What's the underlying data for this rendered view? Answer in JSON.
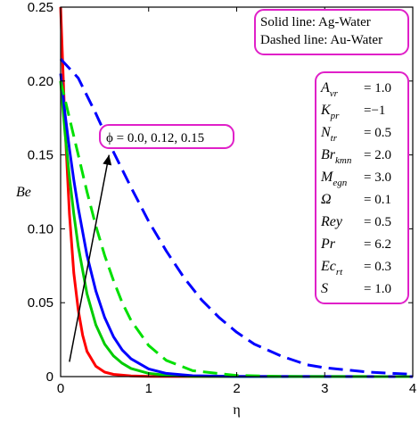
{
  "chart_data": {
    "type": "line",
    "xlabel": "η",
    "ylabel": "Be",
    "xlim": [
      0,
      4
    ],
    "ylim": [
      0,
      0.25
    ],
    "x_ticks": [
      "0",
      "1",
      "2",
      "3",
      "4"
    ],
    "y_ticks": [
      "0",
      "0.05",
      "0.10",
      "0.15",
      "0.20",
      "0.25"
    ],
    "x_tick_values": [
      0,
      1,
      2,
      3,
      4
    ],
    "y_tick_values": [
      0,
      0.05,
      0.1,
      0.15,
      0.2,
      0.25
    ],
    "grid": false,
    "series": [
      {
        "color": "#ff0000",
        "dash": "solid",
        "points": [
          [
            0,
            0.25
          ],
          [
            0.05,
            0.17
          ],
          [
            0.1,
            0.11
          ],
          [
            0.15,
            0.07
          ],
          [
            0.2,
            0.045
          ],
          [
            0.25,
            0.028
          ],
          [
            0.3,
            0.017
          ],
          [
            0.4,
            0.007
          ],
          [
            0.5,
            0.003
          ],
          [
            0.6,
            0.0015
          ],
          [
            0.8,
            0.0004
          ],
          [
            1.0,
            0.0001
          ],
          [
            2.0,
            0
          ],
          [
            4.0,
            0
          ]
        ]
      },
      {
        "color": "#00cc00",
        "dash": "solid",
        "points": [
          [
            0,
            0.2
          ],
          [
            0.05,
            0.165
          ],
          [
            0.1,
            0.135
          ],
          [
            0.15,
            0.11
          ],
          [
            0.2,
            0.088
          ],
          [
            0.3,
            0.056
          ],
          [
            0.4,
            0.035
          ],
          [
            0.5,
            0.022
          ],
          [
            0.6,
            0.014
          ],
          [
            0.7,
            0.009
          ],
          [
            0.8,
            0.0055
          ],
          [
            1.0,
            0.0022
          ],
          [
            1.2,
            0.0009
          ],
          [
            1.5,
            0.0002
          ],
          [
            2.0,
            0
          ],
          [
            4.0,
            0
          ]
        ]
      },
      {
        "color": "#0000ff",
        "dash": "solid",
        "points": [
          [
            0,
            0.205
          ],
          [
            0.05,
            0.178
          ],
          [
            0.1,
            0.154
          ],
          [
            0.15,
            0.133
          ],
          [
            0.2,
            0.114
          ],
          [
            0.3,
            0.082
          ],
          [
            0.4,
            0.058
          ],
          [
            0.5,
            0.04
          ],
          [
            0.6,
            0.027
          ],
          [
            0.7,
            0.018
          ],
          [
            0.8,
            0.012
          ],
          [
            1.0,
            0.0052
          ],
          [
            1.2,
            0.0022
          ],
          [
            1.5,
            0.0006
          ],
          [
            2.0,
            0.0001
          ],
          [
            4.0,
            0
          ]
        ]
      },
      {
        "color": "#00e000",
        "dash": "dashed",
        "points": [
          [
            0,
            0.2
          ],
          [
            0.1,
            0.175
          ],
          [
            0.2,
            0.15
          ],
          [
            0.3,
            0.125
          ],
          [
            0.4,
            0.102
          ],
          [
            0.5,
            0.082
          ],
          [
            0.6,
            0.065
          ],
          [
            0.7,
            0.05
          ],
          [
            0.8,
            0.038
          ],
          [
            1.0,
            0.021
          ],
          [
            1.2,
            0.011
          ],
          [
            1.5,
            0.004
          ],
          [
            2.0,
            0.0008
          ],
          [
            2.5,
            0.0001
          ],
          [
            4.0,
            0
          ]
        ]
      },
      {
        "color": "#0000ff",
        "dash": "dashed",
        "points": [
          [
            0,
            0.215
          ],
          [
            0.2,
            0.202
          ],
          [
            0.4,
            0.178
          ],
          [
            0.6,
            0.152
          ],
          [
            0.8,
            0.128
          ],
          [
            1.0,
            0.105
          ],
          [
            1.2,
            0.085
          ],
          [
            1.4,
            0.067
          ],
          [
            1.6,
            0.052
          ],
          [
            1.8,
            0.04
          ],
          [
            2.0,
            0.03
          ],
          [
            2.2,
            0.022
          ],
          [
            2.5,
            0.014
          ],
          [
            2.8,
            0.008
          ],
          [
            3.0,
            0.006
          ],
          [
            3.5,
            0.003
          ],
          [
            4.0,
            0.0015
          ]
        ]
      }
    ],
    "legend_box": [
      "Solid line:   Ag-Water",
      "Dashed line: Au-Water"
    ],
    "phi_label": "ϕ = 0.0, 0.12, 0.15",
    "arrow": {
      "from": [
        0.1,
        0.01
      ],
      "to": [
        0.55,
        0.15
      ]
    },
    "params": [
      {
        "sym": "A",
        "sub": "vr",
        "val": "= 1.0"
      },
      {
        "sym": "K",
        "sub": "pr",
        "val": "=−1"
      },
      {
        "sym": "N",
        "sub": "tr",
        "val": "= 0.5"
      },
      {
        "sym": "Br",
        "sub": "kmn",
        "val": "= 2.0"
      },
      {
        "sym": "M",
        "sub": "egn",
        "val": "= 3.0"
      },
      {
        "sym": "Ω",
        "sub": "",
        "val": "= 0.1"
      },
      {
        "sym": "Rey",
        "sub": "",
        "val": "= 0.5"
      },
      {
        "sym": "Pr",
        "sub": "",
        "val": "= 6.2"
      },
      {
        "sym": "Ec",
        "sub": "rt",
        "val": "= 0.3"
      },
      {
        "sym": "S",
        "sub": "",
        "val": "= 1.0"
      }
    ]
  }
}
